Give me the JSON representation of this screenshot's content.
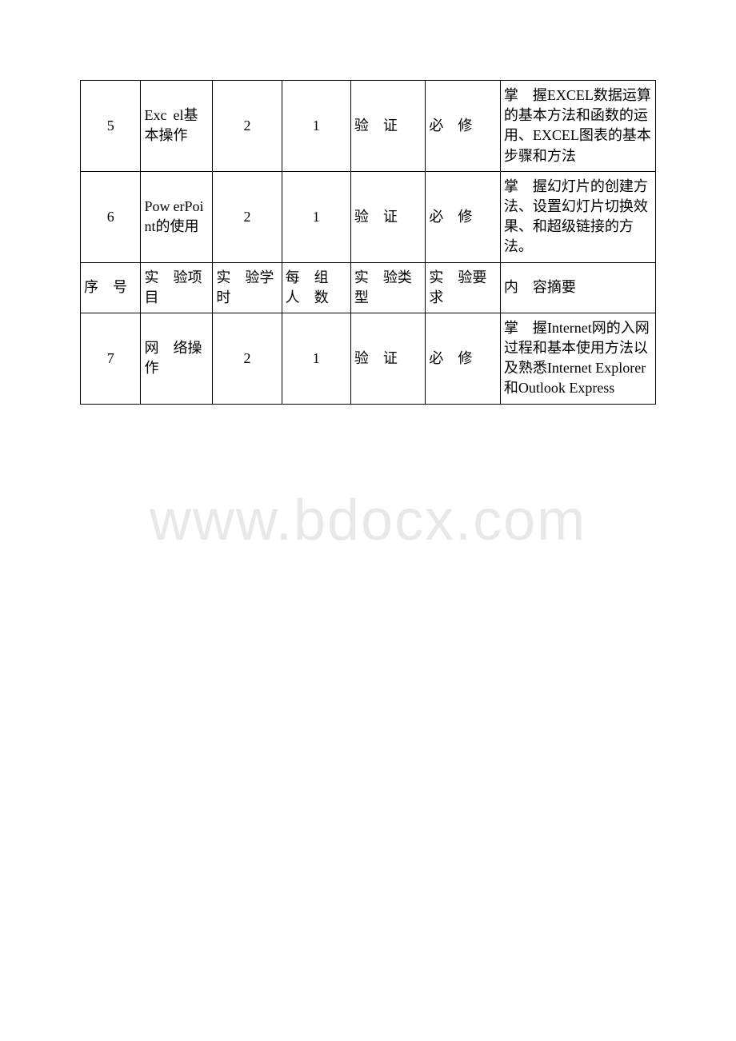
{
  "watermark": "www.bdocx.com",
  "rows": [
    {
      "seq": "5",
      "project_lead": "Exc",
      "project_rest": "el基本操作",
      "hours": "2",
      "group": "1",
      "type_lead": "验",
      "type_rest": "证",
      "req_lead": "必",
      "req_rest": "修",
      "desc_lead": "掌",
      "desc_rest": "握EXCEL数据运算的基本方法和函数的运用、EXCEL图表的基本步骤和方法"
    },
    {
      "seq": "6",
      "project_lead": "Pow",
      "project_rest": "erPoint的使用",
      "hours": "2",
      "group": "1",
      "type_lead": "验",
      "type_rest": "证",
      "req_lead": "必",
      "req_rest": "修",
      "desc_lead": "掌",
      "desc_rest": "握幻灯片的创建方法、设置幻灯片切换效果、和超级链接的方法。"
    },
    {
      "seq": "7",
      "project_lead": "网",
      "project_rest": "络操作",
      "hours": "2",
      "group": "1",
      "type_lead": "验",
      "type_rest": "证",
      "req_lead": "必",
      "req_rest": "修",
      "desc_lead": "掌",
      "desc_rest": "握Internet网的入网过程和基本使用方法以及熟悉Internet Explorer和Outlook Express"
    }
  ],
  "header": {
    "seq_lead": "序",
    "seq_rest": "号",
    "proj_lead": "实",
    "proj_rest": "验项目",
    "hours_lead": "实",
    "hours_rest": "验学时",
    "group_line1_lead": "每",
    "group_line1_rest": "组",
    "group_line2_lead": "人",
    "group_line2_rest": "数",
    "type_lead": "实",
    "type_rest": "验类型",
    "req_lead": "实",
    "req_rest": "验要求",
    "desc_lead": "内",
    "desc_rest": "容摘要"
  }
}
